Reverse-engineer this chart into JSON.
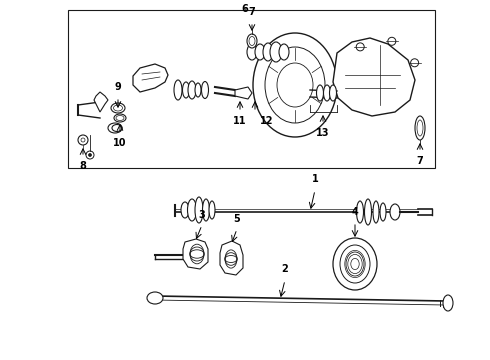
{
  "bg_color": "#ffffff",
  "line_color": "#1a1a1a",
  "fig_width": 4.9,
  "fig_height": 3.6,
  "dpi": 100
}
